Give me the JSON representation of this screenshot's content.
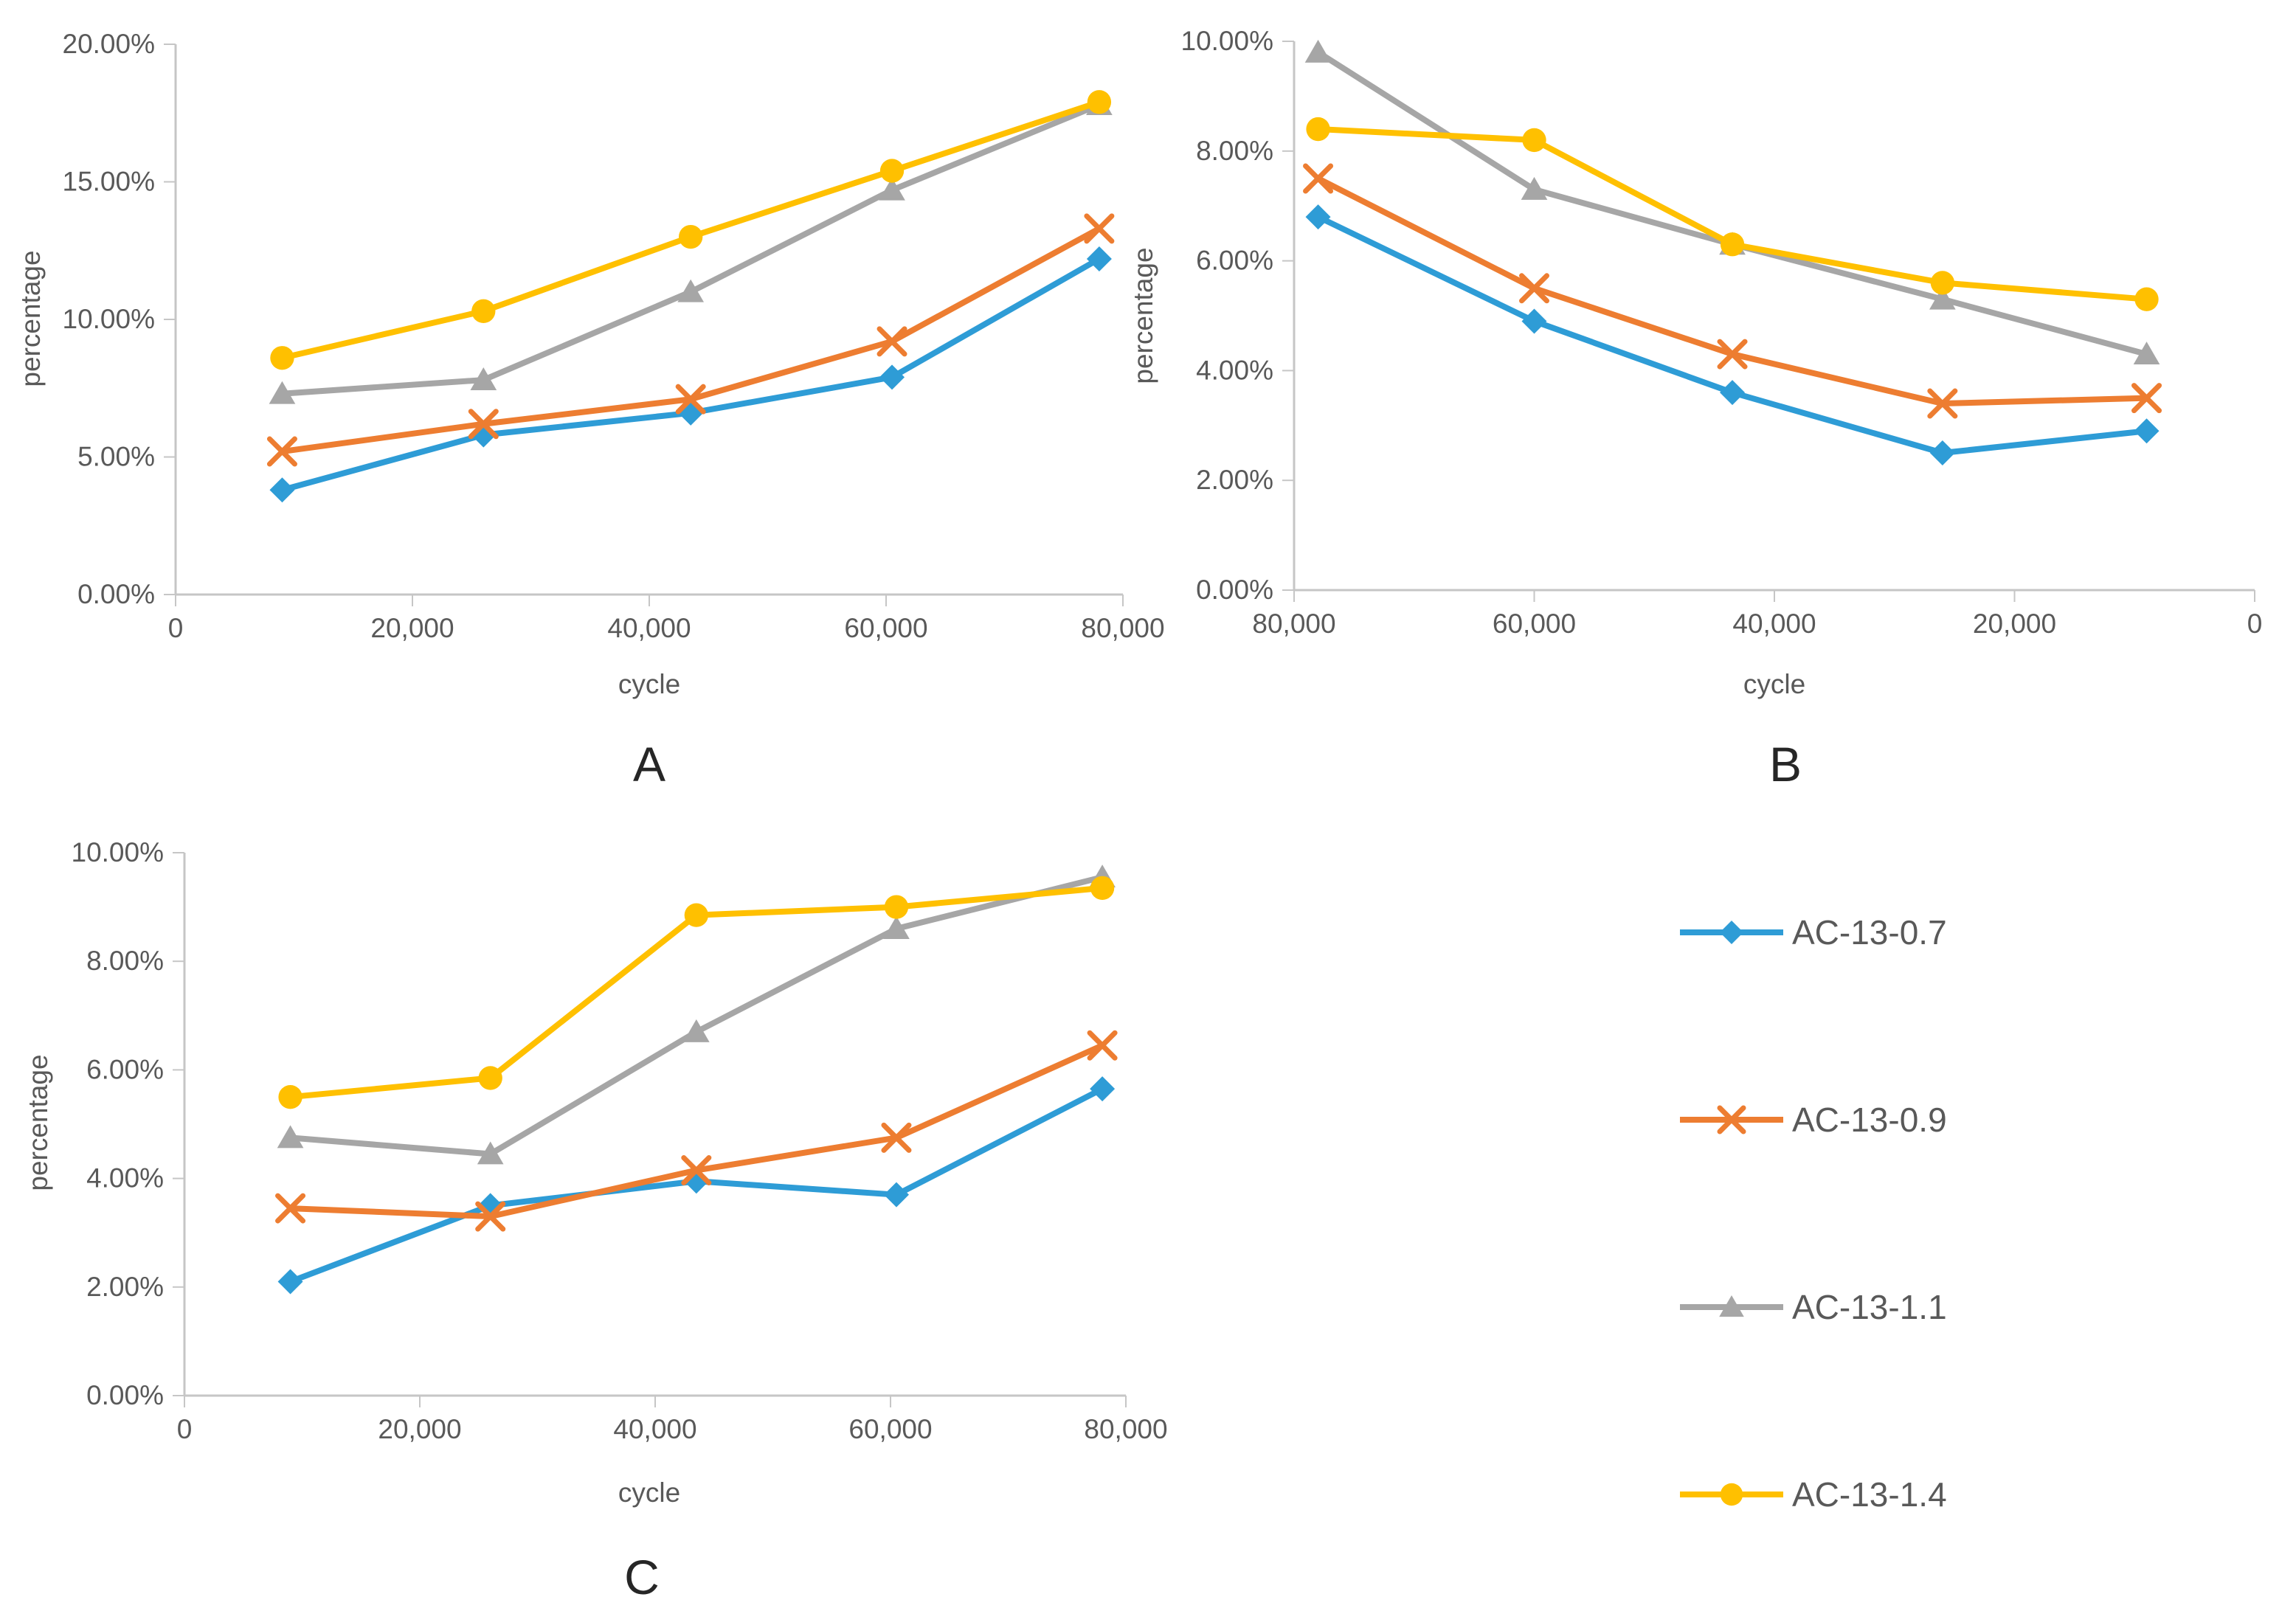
{
  "figure_title": "",
  "axis_text_color": "#595959",
  "axis_line_color": "#c6c6c6",
  "colors": {
    "ac_13_0_7": "#2E9CD6",
    "ac_13_0_9": "#ED7D31",
    "ac_13_1_1": "#A6A6A6",
    "ac_13_1_4": "#FFC000"
  },
  "legend": {
    "position": "bottom-right",
    "items": [
      {
        "label": "AC-13-0.7",
        "color": "#2E9CD6",
        "marker": "diamond"
      },
      {
        "label": "AC-13-0.9",
        "color": "#ED7D31",
        "marker": "x"
      },
      {
        "label": "AC-13-1.1",
        "color": "#A6A6A6",
        "marker": "triangle"
      },
      {
        "label": "AC-13-1.4",
        "color": "#FFC000",
        "marker": "circle"
      }
    ]
  },
  "chart_data": [
    {
      "panel_label": "A",
      "type": "line",
      "title": "",
      "xlabel": "cycle",
      "ylabel": "percentage",
      "grid": false,
      "x": [
        9000,
        26000,
        43500,
        60500,
        78000
      ],
      "xlim": [
        0,
        80000
      ],
      "x_axis_reversed": false,
      "x_tick_values": [
        0,
        20000,
        40000,
        60000,
        80000
      ],
      "x_tick_labels": [
        "0",
        "20,000",
        "40,000",
        "60,000",
        "80,000"
      ],
      "ylim_percent": [
        0,
        20
      ],
      "y_tick_step_percent": 5,
      "y_tick_labels": [
        "0.00%",
        "5.00%",
        "10.00%",
        "15.00%",
        "20.00%"
      ],
      "series": [
        {
          "name": "AC-13-0.7",
          "color": "#2E9CD6",
          "marker": "diamond",
          "values_percent": [
            3.8,
            5.8,
            6.6,
            7.9,
            12.2
          ]
        },
        {
          "name": "AC-13-0.9",
          "color": "#ED7D31",
          "marker": "x",
          "values_percent": [
            5.2,
            6.2,
            7.1,
            9.2,
            13.3
          ]
        },
        {
          "name": "AC-13-1.1",
          "color": "#A6A6A6",
          "marker": "triangle",
          "values_percent": [
            7.3,
            7.8,
            11.0,
            14.7,
            17.8
          ]
        },
        {
          "name": "AC-13-1.4",
          "color": "#FFC000",
          "marker": "circle",
          "values_percent": [
            8.6,
            10.3,
            13.0,
            15.4,
            17.9
          ]
        }
      ]
    },
    {
      "panel_label": "B",
      "type": "line",
      "title": "",
      "xlabel": "cycle",
      "ylabel": "percentage",
      "grid": false,
      "x": [
        78000,
        60000,
        43500,
        26000,
        9000
      ],
      "xlim": [
        0,
        80000
      ],
      "x_axis_reversed": true,
      "x_tick_values": [
        80000,
        60000,
        40000,
        20000,
        0
      ],
      "x_tick_labels": [
        "80,000",
        "60,000",
        "40,000",
        "20,000",
        "0"
      ],
      "ylim_percent": [
        0,
        10
      ],
      "y_tick_step_percent": 2,
      "y_tick_labels": [
        "0.00%",
        "2.00%",
        "4.00%",
        "6.00%",
        "8.00%",
        "10.00%"
      ],
      "series": [
        {
          "name": "AC-13-0.7",
          "color": "#2E9CD6",
          "marker": "diamond",
          "values_percent": [
            6.8,
            4.9,
            3.6,
            2.5,
            2.9
          ]
        },
        {
          "name": "AC-13-0.9",
          "color": "#ED7D31",
          "marker": "x",
          "values_percent": [
            7.5,
            5.5,
            4.3,
            3.4,
            3.5
          ]
        },
        {
          "name": "AC-13-1.1",
          "color": "#A6A6A6",
          "marker": "triangle",
          "values_percent": [
            9.8,
            7.3,
            6.3,
            5.3,
            4.3
          ]
        },
        {
          "name": "AC-13-1.4",
          "color": "#FFC000",
          "marker": "circle",
          "values_percent": [
            8.4,
            8.2,
            6.3,
            5.6,
            5.3
          ]
        }
      ]
    },
    {
      "panel_label": "C",
      "type": "line",
      "title": "",
      "xlabel": "cycle",
      "ylabel": "percentage",
      "grid": false,
      "x": [
        9000,
        26000,
        43500,
        60500,
        78000
      ],
      "xlim": [
        0,
        80000
      ],
      "x_axis_reversed": false,
      "x_tick_values": [
        0,
        20000,
        40000,
        60000,
        80000
      ],
      "x_tick_labels": [
        "0",
        "20,000",
        "40,000",
        "60,000",
        "80,000"
      ],
      "ylim_percent": [
        0,
        10
      ],
      "y_tick_step_percent": 2,
      "y_tick_labels": [
        "0.00%",
        "2.00%",
        "4.00%",
        "6.00%",
        "8.00%",
        "10.00%"
      ],
      "series": [
        {
          "name": "AC-13-0.7",
          "color": "#2E9CD6",
          "marker": "diamond",
          "values_percent": [
            2.1,
            3.5,
            3.95,
            3.7,
            5.65
          ]
        },
        {
          "name": "AC-13-0.9",
          "color": "#ED7D31",
          "marker": "x",
          "values_percent": [
            3.45,
            3.3,
            4.15,
            4.75,
            6.45
          ]
        },
        {
          "name": "AC-13-1.1",
          "color": "#A6A6A6",
          "marker": "triangle",
          "values_percent": [
            4.75,
            4.45,
            6.7,
            8.6,
            9.55
          ]
        },
        {
          "name": "AC-13-1.4",
          "color": "#FFC000",
          "marker": "circle",
          "values_percent": [
            5.5,
            5.85,
            8.85,
            9.0,
            9.35
          ]
        }
      ]
    }
  ]
}
